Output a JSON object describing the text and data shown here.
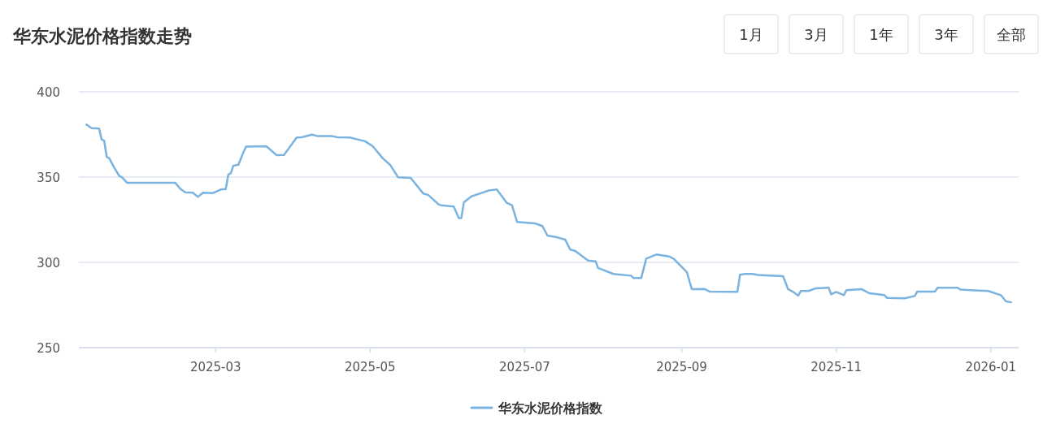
{
  "chart_data": {
    "type": "line",
    "title": "华东水泥价格指数走势",
    "annotations": [
      "1月",
      "3月",
      "1年",
      "3年",
      "全部"
    ],
    "xlim": [
      "2025-01-06",
      "2026-01-12"
    ],
    "xticks": [
      {
        "value": "2025-03-01",
        "label": "2025-03"
      },
      {
        "value": "2025-05-01",
        "label": "2025-05"
      },
      {
        "value": "2025-07-01",
        "label": "2025-07"
      },
      {
        "value": "2025-09-01",
        "label": "2025-09"
      },
      {
        "value": "2025-11-01",
        "label": "2025-11"
      },
      {
        "value": "2026-01-01",
        "label": "2026-01"
      }
    ],
    "ylim": [
      250,
      400
    ],
    "yticks": [
      250,
      300,
      350,
      400
    ],
    "grid": "y",
    "legend": "bottom",
    "marker": "none",
    "line_style": "solid",
    "series": [
      {
        "name": "华东水泥价格指数",
        "color": "#7ab3e0",
        "x": [
          "2025-01-09",
          "2025-01-11",
          "2025-01-14",
          "2025-01-15",
          "2025-01-16",
          "2025-01-17",
          "2025-01-18",
          "2025-01-20",
          "2025-01-22",
          "2025-01-23",
          "2025-01-25",
          "2025-02-13",
          "2025-02-15",
          "2025-02-17",
          "2025-02-20",
          "2025-02-22",
          "2025-02-24",
          "2025-02-28",
          "2025-03-03",
          "2025-03-05",
          "2025-03-06",
          "2025-03-07",
          "2025-03-08",
          "2025-03-10",
          "2025-03-12",
          "2025-03-13",
          "2025-03-21",
          "2025-03-25",
          "2025-03-28",
          "2025-04-02",
          "2025-04-04",
          "2025-04-08",
          "2025-04-10",
          "2025-04-16",
          "2025-04-18",
          "2025-04-23",
          "2025-04-26",
          "2025-04-29",
          "2025-05-02",
          "2025-05-06",
          "2025-05-09",
          "2025-05-12",
          "2025-05-17",
          "2025-05-22",
          "2025-05-24",
          "2025-05-28",
          "2025-05-29",
          "2025-06-03",
          "2025-06-05",
          "2025-06-06",
          "2025-06-07",
          "2025-06-10",
          "2025-06-17",
          "2025-06-20",
          "2025-06-24",
          "2025-06-26",
          "2025-06-28",
          "2025-07-05",
          "2025-07-08",
          "2025-07-10",
          "2025-07-14",
          "2025-07-17",
          "2025-07-19",
          "2025-07-21",
          "2025-07-26",
          "2025-07-29",
          "2025-07-30",
          "2025-08-05",
          "2025-08-12",
          "2025-08-13",
          "2025-08-16",
          "2025-08-18",
          "2025-08-22",
          "2025-08-27",
          "2025-08-29",
          "2025-09-03",
          "2025-09-05",
          "2025-09-10",
          "2025-09-12",
          "2025-09-23",
          "2025-09-24",
          "2025-09-26",
          "2025-09-29",
          "2025-10-01",
          "2025-10-11",
          "2025-10-13",
          "2025-10-15",
          "2025-10-17",
          "2025-10-18",
          "2025-10-21",
          "2025-10-24",
          "2025-10-29",
          "2025-10-30",
          "2025-11-01",
          "2025-11-04",
          "2025-11-05",
          "2025-11-11",
          "2025-11-14",
          "2025-11-20",
          "2025-11-21",
          "2025-11-28",
          "2025-12-02",
          "2025-12-03",
          "2025-12-10",
          "2025-12-11",
          "2025-12-19",
          "2025-12-20",
          "2025-12-24",
          "2025-12-31",
          "2026-01-05",
          "2026-01-07",
          "2026-01-09"
        ],
        "values": [
          380.8,
          378.7,
          378.4,
          372.1,
          371.3,
          361.8,
          361.0,
          355.4,
          350.6,
          349.9,
          346.7,
          346.7,
          343.2,
          341.1,
          340.8,
          338.4,
          340.8,
          340.6,
          342.7,
          343.0,
          351.4,
          352.3,
          356.7,
          357.3,
          364.6,
          367.8,
          368.1,
          362.9,
          363.0,
          373.2,
          373.3,
          374.9,
          374.1,
          374.0,
          373.3,
          373.2,
          372.1,
          371.0,
          368.1,
          361.0,
          357.0,
          349.9,
          349.5,
          340.3,
          339.5,
          334.0,
          333.5,
          332.7,
          326.0,
          326.0,
          335.2,
          338.7,
          342.2,
          342.7,
          334.8,
          333.5,
          323.7,
          322.9,
          321.3,
          315.7,
          314.6,
          313.3,
          307.5,
          306.7,
          301.1,
          300.6,
          296.7,
          293.2,
          292.2,
          290.8,
          290.8,
          302.2,
          304.6,
          303.5,
          301.9,
          294.3,
          284.3,
          284.4,
          282.9,
          282.7,
          292.7,
          293.2,
          293.2,
          292.6,
          291.9,
          284.3,
          282.7,
          280.5,
          283.2,
          283.2,
          284.8,
          285.2,
          281.3,
          282.7,
          280.8,
          283.7,
          284.3,
          281.9,
          280.8,
          279.2,
          278.9,
          280.3,
          282.9,
          282.9,
          285.1,
          285.1,
          284.0,
          283.7,
          283.2,
          280.8,
          277.1,
          276.6
        ]
      }
    ]
  }
}
